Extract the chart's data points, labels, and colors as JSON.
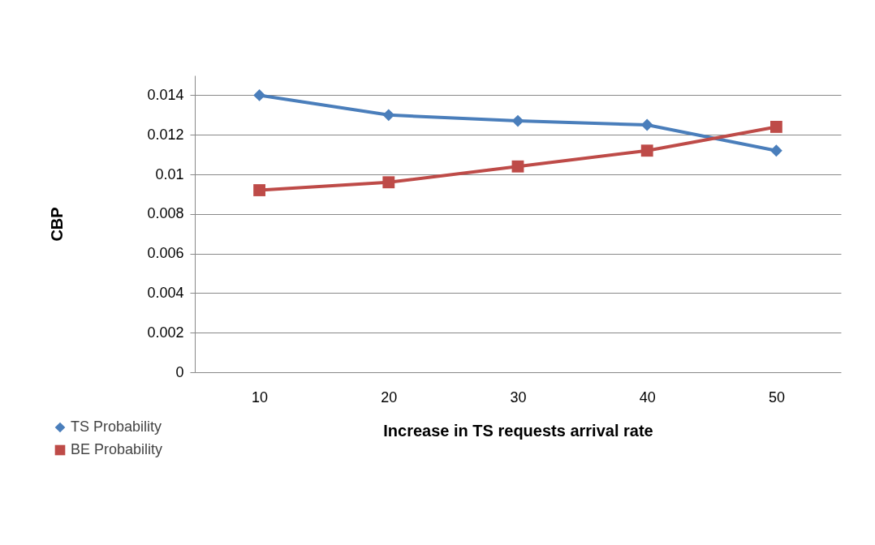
{
  "chart_data": {
    "type": "line",
    "xlabel": "Increase in TS requests arrival rate",
    "ylabel": "CBP",
    "categories": [
      "10",
      "20",
      "30",
      "40",
      "50"
    ],
    "series": [
      {
        "name": "TS Probability",
        "color": "#4a7ebb",
        "marker": "diamond",
        "values": [
          0.014,
          0.013,
          0.0127,
          0.0125,
          0.0112
        ]
      },
      {
        "name": "BE Probability",
        "color": "#be4b48",
        "marker": "square",
        "values": [
          0.0092,
          0.0096,
          0.0104,
          0.0112,
          0.0124
        ]
      }
    ],
    "ylim": [
      0,
      0.015
    ],
    "yticks": [
      0,
      0.002,
      0.004,
      0.006,
      0.008,
      0.01,
      0.012,
      0.014
    ],
    "grid": "y",
    "legend": "bottom left"
  }
}
